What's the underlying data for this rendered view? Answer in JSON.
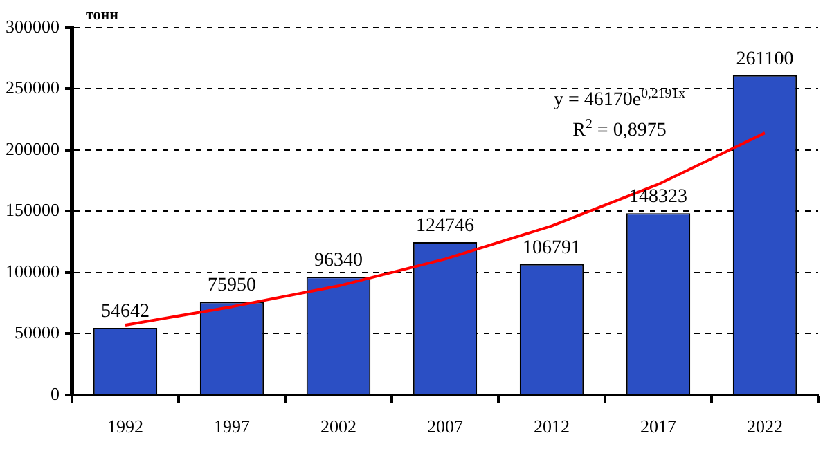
{
  "chart_data": {
    "type": "bar",
    "ylabel": "тонн",
    "categories": [
      "1992",
      "1997",
      "2002",
      "2007",
      "2012",
      "2017",
      "2022"
    ],
    "series": [
      {
        "color": "#2b4fc4",
        "values": [
          54642,
          75950,
          96340,
          124746,
          106791,
          148323,
          261100
        ],
        "value_labels": [
          "54642",
          "75950",
          "96340",
          "124746",
          "106791",
          "148323",
          "261100"
        ]
      },
      {
        "type": "line",
        "color": "#ff0000",
        "values": [
          57000,
          72000,
          89000,
          111000,
          138000,
          172000,
          214000
        ]
      }
    ],
    "ylim": [
      0,
      300000
    ],
    "yticks": [
      0,
      50000,
      100000,
      150000,
      200000,
      250000,
      300000
    ],
    "grid": "y",
    "legend": false,
    "marker": "none",
    "line_style": "solid",
    "annotations": [
      "y = 46170e$^{0,2191x}$",
      "R$^{2}$ = 0,8975"
    ]
  }
}
